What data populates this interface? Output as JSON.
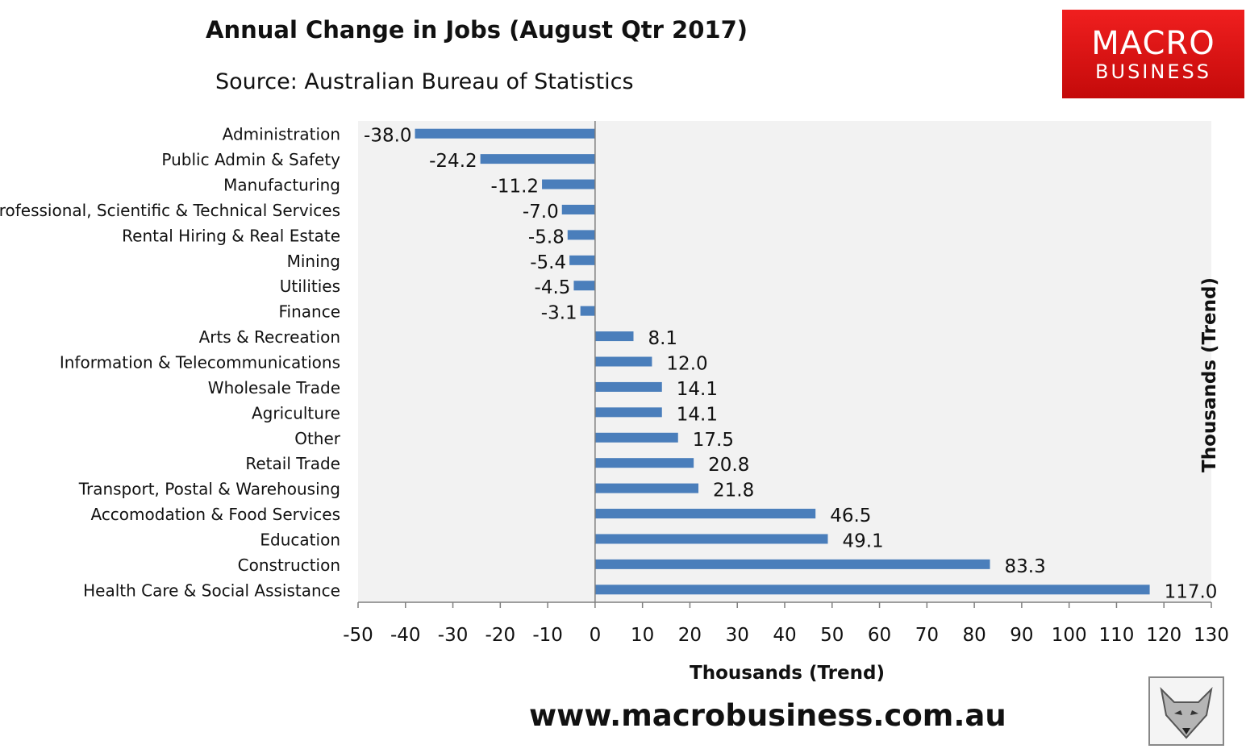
{
  "header": {
    "title": "Annual Change in Jobs (August Qtr 2017)",
    "subtitle": "Source: Australian Bureau of Statistics"
  },
  "logo": {
    "line1": "MACRO",
    "line2": "BUSINESS"
  },
  "footer": {
    "website": "www.macrobusiness.com.au"
  },
  "colors": {
    "bar": "#4a7ebb",
    "plot_bg": "#f2f2f2",
    "logo_red": "#e01414"
  },
  "chart_data": {
    "type": "bar",
    "orientation": "horizontal",
    "categories": [
      "Administration",
      "Public Admin & Safety",
      "Manufacturing",
      "Professional, Scientific & Technical Services",
      "Rental Hiring & Real Estate",
      "Mining",
      "Utilities",
      "Finance",
      "Arts & Recreation",
      "Information & Telecommunications",
      "Wholesale Trade",
      "Agriculture",
      "Other",
      "Retail Trade",
      "Transport, Postal & Warehousing",
      "Accomodation & Food Services",
      "Education",
      "Construction",
      "Health Care & Social Assistance"
    ],
    "values": [
      -38.0,
      -24.2,
      -11.2,
      -7.0,
      -5.8,
      -5.4,
      -4.5,
      -3.1,
      8.1,
      12.0,
      14.1,
      14.1,
      17.5,
      20.8,
      21.8,
      46.5,
      49.1,
      83.3,
      117.0
    ],
    "data_labels": [
      "-38.0",
      "-24.2",
      "-11.2",
      "-7.0",
      "-5.8",
      "-5.4",
      "-4.5",
      "-3.1",
      "8.1",
      "12.0",
      "14.1",
      "14.1",
      "17.5",
      "20.8",
      "21.8",
      "46.5",
      "49.1",
      "83.3",
      "117.0"
    ],
    "title": "Annual Change in Jobs (August Qtr 2017)",
    "xlabel": "Thousands (Trend)",
    "ylabel": "Thousands (Trend)",
    "xlim": [
      -50,
      130
    ],
    "xticks": [
      -50,
      -40,
      -30,
      -20,
      -10,
      0,
      10,
      20,
      30,
      40,
      50,
      60,
      70,
      80,
      90,
      100,
      110,
      120,
      130
    ],
    "grid": false,
    "legend": "none"
  }
}
